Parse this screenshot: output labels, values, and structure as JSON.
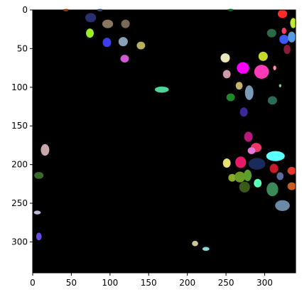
{
  "chart_data": {
    "type": "image",
    "title": "",
    "xlabel": "",
    "ylabel": "",
    "xlim": [
      0,
      340
    ],
    "ylim": [
      340,
      0
    ],
    "y_axis_inverted": true,
    "grid": false,
    "legend": "none",
    "background_color": "#000000",
    "x_ticks": [
      0,
      50,
      100,
      150,
      200,
      250,
      300
    ],
    "y_ticks": [
      0,
      50,
      100,
      150,
      200,
      250,
      300
    ],
    "x_tick_labels": [
      "0",
      "50",
      "100",
      "150",
      "200",
      "250",
      "300"
    ],
    "y_tick_labels": [
      "0",
      "50",
      "100",
      "150",
      "200",
      "250",
      "300"
    ],
    "blobs": [
      {
        "x": 43,
        "y": 0,
        "w": 8,
        "h": 3,
        "color": "#ff6a2a"
      },
      {
        "x": 87,
        "y": 0,
        "w": 8,
        "h": 3,
        "color": "#6b7fd0"
      },
      {
        "x": 256,
        "y": 0,
        "w": 8,
        "h": 3,
        "color": "#2fa84a"
      },
      {
        "x": 75,
        "y": 10,
        "w": 14,
        "h": 12,
        "color": "#2a2f6f"
      },
      {
        "x": 97,
        "y": 18,
        "w": 14,
        "h": 11,
        "color": "#8a7560"
      },
      {
        "x": 120,
        "y": 18,
        "w": 11,
        "h": 11,
        "color": "#7a6a55"
      },
      {
        "x": 74,
        "y": 30,
        "w": 10,
        "h": 12,
        "color": "#9aee22"
      },
      {
        "x": 96,
        "y": 42,
        "w": 11,
        "h": 12,
        "color": "#3a3ef0"
      },
      {
        "x": 117,
        "y": 41,
        "w": 12,
        "h": 12,
        "color": "#8a9fb8"
      },
      {
        "x": 140,
        "y": 46,
        "w": 11,
        "h": 10,
        "color": "#b8b060"
      },
      {
        "x": 119,
        "y": 63,
        "w": 11,
        "h": 10,
        "color": "#d05ad0"
      },
      {
        "x": 167,
        "y": 103,
        "w": 18,
        "h": 8,
        "color": "#4ed69a"
      },
      {
        "x": 323,
        "y": 5,
        "w": 12,
        "h": 11,
        "color": "#ff2a2a"
      },
      {
        "x": 337,
        "y": 17,
        "w": 8,
        "h": 13,
        "color": "#bbee33"
      },
      {
        "x": 325,
        "y": 27,
        "w": 6,
        "h": 8,
        "color": "#ff3a6a"
      },
      {
        "x": 309,
        "y": 30,
        "w": 12,
        "h": 11,
        "color": "#2a6a4a"
      },
      {
        "x": 325,
        "y": 38,
        "w": 12,
        "h": 12,
        "color": "#3a5af0"
      },
      {
        "x": 335,
        "y": 35,
        "w": 10,
        "h": 14,
        "color": "#5a9ae0"
      },
      {
        "x": 329,
        "y": 51,
        "w": 9,
        "h": 12,
        "color": "#8a1a3a"
      },
      {
        "x": 298,
        "y": 60,
        "w": 12,
        "h": 12,
        "color": "#c8d82a"
      },
      {
        "x": 249,
        "y": 62,
        "w": 12,
        "h": 12,
        "color": "#e8e8b8"
      },
      {
        "x": 272,
        "y": 75,
        "w": 16,
        "h": 15,
        "color": "#ff00ff"
      },
      {
        "x": 296,
        "y": 80,
        "w": 19,
        "h": 18,
        "color": "#ff3ab8"
      },
      {
        "x": 251,
        "y": 83,
        "w": 10,
        "h": 11,
        "color": "#d09aa8"
      },
      {
        "x": 313,
        "y": 75,
        "w": 4,
        "h": 6,
        "color": "#ff8ab8"
      },
      {
        "x": 267,
        "y": 98,
        "w": 9,
        "h": 10,
        "color": "#c8b070"
      },
      {
        "x": 280,
        "y": 107,
        "w": 11,
        "h": 19,
        "color": "#7a9ab8"
      },
      {
        "x": 256,
        "y": 113,
        "w": 11,
        "h": 10,
        "color": "#1a8a2a"
      },
      {
        "x": 310,
        "y": 117,
        "w": 12,
        "h": 11,
        "color": "#2a6a5a"
      },
      {
        "x": 320,
        "y": 98,
        "w": 3,
        "h": 4,
        "color": "#8ad88a"
      },
      {
        "x": 273,
        "y": 132,
        "w": 10,
        "h": 12,
        "color": "#3a2a9a"
      },
      {
        "x": 279,
        "y": 164,
        "w": 11,
        "h": 13,
        "color": "#b81a7a"
      },
      {
        "x": 289,
        "y": 178,
        "w": 14,
        "h": 12,
        "color": "#e8386a"
      },
      {
        "x": 283,
        "y": 182,
        "w": 10,
        "h": 9,
        "color": "#e878d8"
      },
      {
        "x": 314,
        "y": 189,
        "w": 24,
        "h": 13,
        "color": "#5affff"
      },
      {
        "x": 269,
        "y": 197,
        "w": 14,
        "h": 15,
        "color": "#e81a68"
      },
      {
        "x": 290,
        "y": 199,
        "w": 22,
        "h": 15,
        "color": "#1a2a5a"
      },
      {
        "x": 251,
        "y": 198,
        "w": 10,
        "h": 12,
        "color": "#e8e070"
      },
      {
        "x": 312,
        "y": 205,
        "w": 11,
        "h": 12,
        "color": "#c81a2a"
      },
      {
        "x": 335,
        "y": 208,
        "w": 11,
        "h": 10,
        "color": "#e8382a"
      },
      {
        "x": 320,
        "y": 215,
        "w": 9,
        "h": 10,
        "color": "#5a6a9a"
      },
      {
        "x": 258,
        "y": 217,
        "w": 10,
        "h": 10,
        "color": "#8aaa2a"
      },
      {
        "x": 268,
        "y": 216,
        "w": 14,
        "h": 14,
        "color": "#6a9a22"
      },
      {
        "x": 278,
        "y": 214,
        "w": 10,
        "h": 15,
        "color": "#5aa02a"
      },
      {
        "x": 274,
        "y": 229,
        "w": 14,
        "h": 14,
        "color": "#3a5a1a"
      },
      {
        "x": 291,
        "y": 224,
        "w": 10,
        "h": 11,
        "color": "#5affb8"
      },
      {
        "x": 310,
        "y": 232,
        "w": 15,
        "h": 18,
        "color": "#3a8a5a"
      },
      {
        "x": 335,
        "y": 228,
        "w": 11,
        "h": 10,
        "color": "#c85a22"
      },
      {
        "x": 323,
        "y": 253,
        "w": 19,
        "h": 14,
        "color": "#6a8aa8"
      },
      {
        "x": 16,
        "y": 181,
        "w": 11,
        "h": 15,
        "color": "#c8a8a8"
      },
      {
        "x": 8,
        "y": 214,
        "w": 12,
        "h": 9,
        "color": "#3a6a2a"
      },
      {
        "x": 6,
        "y": 262,
        "w": 9,
        "h": 5,
        "color": "#b8b8d8"
      },
      {
        "x": 8,
        "y": 293,
        "w": 7,
        "h": 10,
        "color": "#6a4ae8"
      },
      {
        "x": 210,
        "y": 302,
        "w": 8,
        "h": 7,
        "color": "#c8c890"
      },
      {
        "x": 224,
        "y": 309,
        "w": 9,
        "h": 5,
        "color": "#8ad8d8"
      }
    ]
  }
}
